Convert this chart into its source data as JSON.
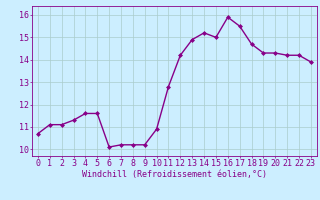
{
  "x": [
    0,
    1,
    2,
    3,
    4,
    5,
    6,
    7,
    8,
    9,
    10,
    11,
    12,
    13,
    14,
    15,
    16,
    17,
    18,
    19,
    20,
    21,
    22,
    23
  ],
  "y": [
    10.7,
    11.1,
    11.1,
    11.3,
    11.6,
    11.6,
    10.1,
    10.2,
    10.2,
    10.2,
    10.9,
    12.8,
    14.2,
    14.9,
    15.2,
    15.0,
    15.9,
    15.5,
    14.7,
    14.3,
    14.3,
    14.2,
    14.2,
    13.9
  ],
  "line_color": "#880088",
  "marker": "D",
  "marker_size": 2.0,
  "line_width": 1.0,
  "bg_color": "#cceeff",
  "grid_color": "#aacccc",
  "xlabel": "Windchill (Refroidissement éolien,°C)",
  "xlabel_fontsize": 6.0,
  "ylabel_ticks": [
    10,
    11,
    12,
    13,
    14,
    15,
    16
  ],
  "xlim": [
    -0.5,
    23.5
  ],
  "ylim": [
    9.7,
    16.4
  ],
  "tick_fontsize": 6.0
}
